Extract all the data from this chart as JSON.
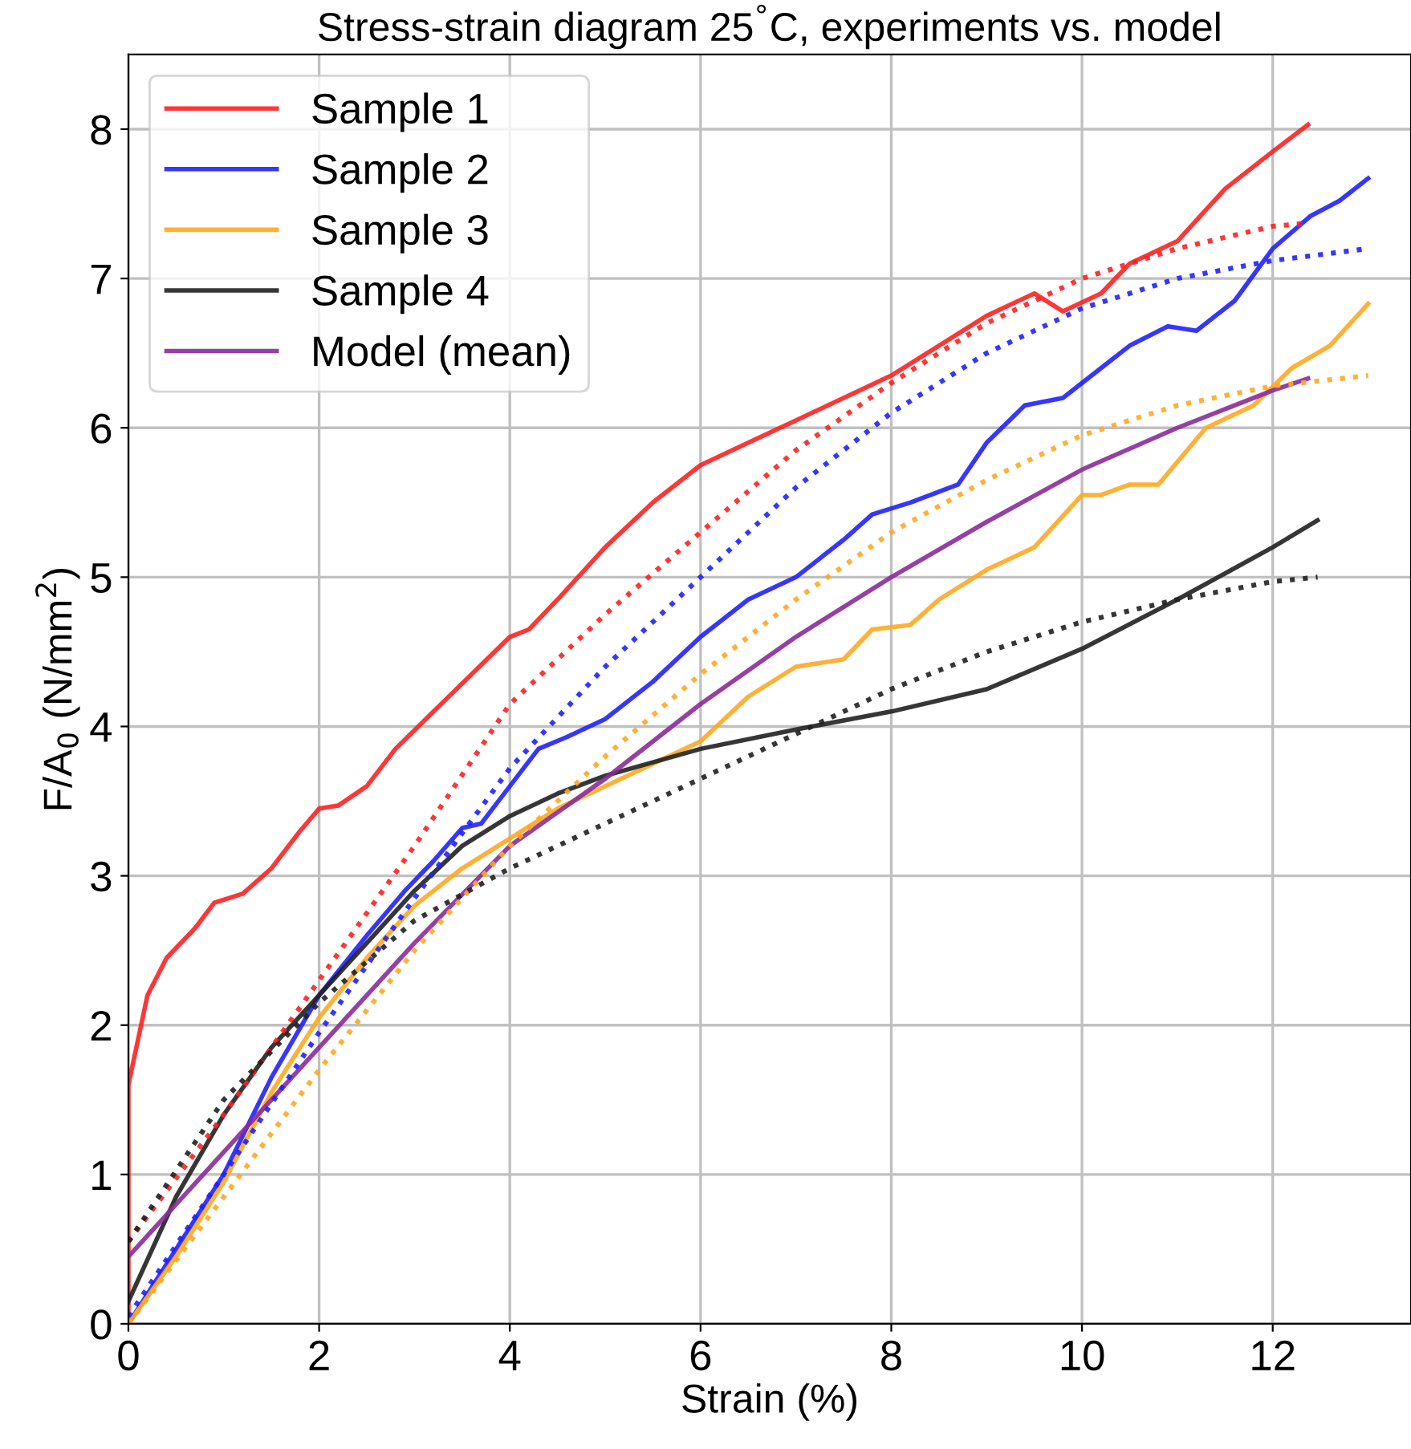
{
  "chart_data": {
    "type": "line",
    "title": "Stress-strain diagram 25$^{°}$C, experiments vs. model",
    "xlabel": "Strain (%)",
    "ylabel": "F/A$_{0}$ (N/mm$^{2}$)",
    "xlim": [
      0,
      13.45
    ],
    "ylim": [
      0,
      8.5
    ],
    "xticks": [
      0,
      2,
      4,
      6,
      8,
      10,
      12
    ],
    "yticks": [
      0,
      1,
      2,
      3,
      4,
      5,
      6,
      7,
      8
    ],
    "grid": true,
    "legend": "top left",
    "marker": "none",
    "series": [
      {
        "name": "Sample 1",
        "color": "#ff2020",
        "line_style": "solid",
        "x": [
          0,
          0,
          0.2,
          0.4,
          0.7,
          0.9,
          1.2,
          1.5,
          1.8,
          2.0,
          2.2,
          2.5,
          2.8,
          3.2,
          3.6,
          4.0,
          4.2,
          4.5,
          5.0,
          5.5,
          6.0,
          6.5,
          7.0,
          7.5,
          8.0,
          8.5,
          9.0,
          9.5,
          9.8,
          10.2,
          10.5,
          11.0,
          11.5,
          12.0,
          12.37
        ],
        "values": [
          0,
          1.6,
          2.2,
          2.45,
          2.65,
          2.82,
          2.88,
          3.05,
          3.3,
          3.45,
          3.47,
          3.6,
          3.85,
          4.1,
          4.35,
          4.6,
          4.65,
          4.85,
          5.2,
          5.5,
          5.75,
          5.9,
          6.05,
          6.2,
          6.35,
          6.55,
          6.75,
          6.9,
          6.78,
          6.9,
          7.1,
          7.25,
          7.6,
          7.85,
          8.03
        ]
      },
      {
        "name": "Sample 2",
        "color": "#2020ff",
        "line_style": "solid",
        "x": [
          0,
          0.5,
          1,
          1.5,
          2,
          2.5,
          2.9,
          3.2,
          3.5,
          3.7,
          4.0,
          4.3,
          4.6,
          5.0,
          5.5,
          6.0,
          6.5,
          7.0,
          7.5,
          7.8,
          8.2,
          8.7,
          9.0,
          9.4,
          9.8,
          10.2,
          10.5,
          10.9,
          11.2,
          11.6,
          12.0,
          12.4,
          12.7,
          13.0
        ],
        "values": [
          0,
          0.5,
          1.0,
          1.65,
          2.2,
          2.6,
          2.9,
          3.1,
          3.32,
          3.35,
          3.6,
          3.85,
          3.93,
          4.05,
          4.3,
          4.6,
          4.85,
          5.0,
          5.25,
          5.42,
          5.5,
          5.62,
          5.9,
          6.15,
          6.2,
          6.4,
          6.55,
          6.68,
          6.65,
          6.85,
          7.2,
          7.42,
          7.52,
          7.67
        ]
      },
      {
        "name": "Sample 3",
        "color": "#ffa820",
        "line_style": "solid",
        "x": [
          0,
          0.5,
          1,
          1.5,
          2,
          2.5,
          3,
          3.5,
          4,
          4.5,
          5,
          5.5,
          6,
          6.5,
          7,
          7.5,
          7.8,
          8.2,
          8.5,
          9,
          9.5,
          10,
          10.2,
          10.5,
          10.8,
          11.3,
          11.8,
          12.2,
          12.6,
          13.0
        ],
        "values": [
          0,
          0.45,
          0.95,
          1.55,
          2.05,
          2.45,
          2.8,
          3.05,
          3.25,
          3.45,
          3.6,
          3.75,
          3.9,
          4.2,
          4.4,
          4.45,
          4.65,
          4.68,
          4.85,
          5.05,
          5.2,
          5.55,
          5.55,
          5.62,
          5.62,
          6.0,
          6.15,
          6.4,
          6.55,
          6.83
        ]
      },
      {
        "name": "Sample 4",
        "color": "#202020",
        "line_style": "solid",
        "x": [
          0,
          0.5,
          1,
          1.5,
          2,
          2.5,
          3,
          3.5,
          4,
          4.5,
          5,
          6,
          7,
          8,
          9,
          10,
          11,
          12,
          12.47
        ],
        "values": [
          0.15,
          0.85,
          1.4,
          1.85,
          2.2,
          2.55,
          2.9,
          3.2,
          3.4,
          3.55,
          3.67,
          3.85,
          3.98,
          4.1,
          4.25,
          4.52,
          4.85,
          5.2,
          5.38
        ]
      },
      {
        "name": "Model (mean)",
        "color": "#8b2a9a",
        "line_style": "solid",
        "x": [
          0,
          1,
          2,
          3,
          4,
          5,
          6,
          7,
          8,
          9,
          10,
          11,
          12,
          12.37
        ],
        "values": [
          0.45,
          1.15,
          1.85,
          2.55,
          3.2,
          3.65,
          4.15,
          4.6,
          5.0,
          5.37,
          5.72,
          6.0,
          6.25,
          6.33
        ]
      },
      {
        "color": "#ff2020",
        "line_style": "dotted",
        "x": [
          0,
          1,
          2,
          3,
          4,
          5,
          6,
          7,
          8,
          9,
          10,
          11,
          12,
          12.37
        ],
        "values": [
          0.55,
          1.4,
          2.3,
          3.2,
          4.15,
          4.75,
          5.3,
          5.85,
          6.3,
          6.7,
          7.0,
          7.2,
          7.35,
          7.37
        ]
      },
      {
        "color": "#2020ff",
        "line_style": "dotted",
        "x": [
          0,
          1,
          2,
          3,
          4,
          5,
          6,
          7,
          8,
          9,
          10,
          11,
          12,
          13
        ],
        "values": [
          0.05,
          1.0,
          1.95,
          2.85,
          3.72,
          4.4,
          5.0,
          5.6,
          6.1,
          6.5,
          6.8,
          7.0,
          7.12,
          7.2
        ]
      },
      {
        "color": "#ffa820",
        "line_style": "dotted",
        "x": [
          0,
          1,
          2,
          3,
          4,
          5,
          6,
          7,
          8,
          9,
          10,
          11,
          12,
          13
        ],
        "values": [
          0,
          0.85,
          1.7,
          2.5,
          3.2,
          3.8,
          4.35,
          4.85,
          5.3,
          5.65,
          5.95,
          6.15,
          6.28,
          6.35
        ]
      },
      {
        "color": "#202020",
        "line_style": "dotted",
        "x": [
          0,
          1,
          2,
          3,
          4,
          5,
          6,
          7,
          8,
          9,
          10,
          11,
          12,
          12.47
        ],
        "values": [
          0.55,
          1.5,
          2.15,
          2.7,
          3.05,
          3.35,
          3.65,
          3.95,
          4.25,
          4.5,
          4.7,
          4.85,
          4.97,
          5.0
        ]
      }
    ]
  }
}
